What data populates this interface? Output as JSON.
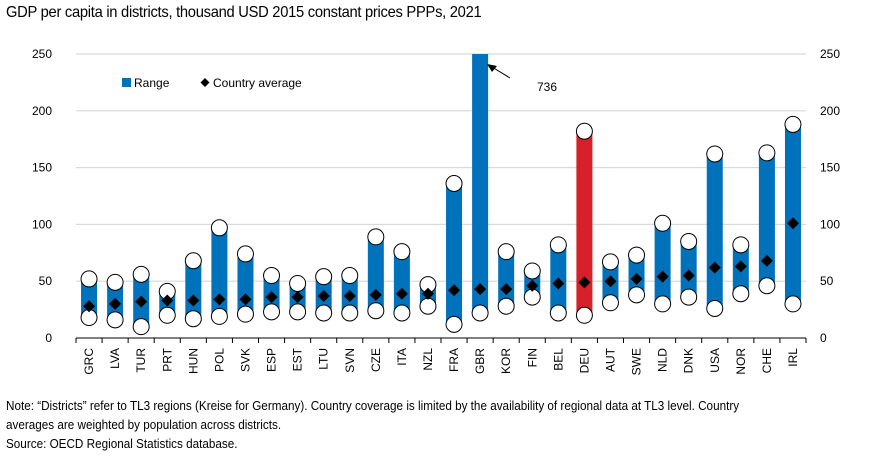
{
  "title": "GDP per capita in districts, thousand USD 2015 constant prices PPPs, 2021",
  "note_lines": [
    "Note: “Districts” refer to TL3 regions (Kreise for Germany). Country coverage is limited by the availability of regional data at TL3 level. Country",
    "averages are weighted by population across districts.",
    "Source: OECD Regional Statistics database."
  ],
  "colors": {
    "range": "#0072BC",
    "highlight": "#D7202A",
    "average": "#000000",
    "grid": "#D9D9D9"
  },
  "chart_data": {
    "type": "range-bar",
    "title": "GDP per capita in districts, thousand USD 2015 constant prices PPPs, 2021",
    "xlabel": "",
    "ylabel": "",
    "ylim": [
      0,
      250
    ],
    "yticks": [
      0,
      50,
      100,
      150,
      200,
      250
    ],
    "grid": true,
    "secondary_axis": true,
    "legend": {
      "placement": "top-left",
      "entries": [
        "Range",
        "Country average"
      ]
    },
    "categories": [
      "GRC",
      "LVA",
      "TUR",
      "PRT",
      "HUN",
      "POL",
      "SVK",
      "ESP",
      "EST",
      "LTU",
      "SVN",
      "CZE",
      "ITA",
      "NZL",
      "FRA",
      "GBR",
      "KOR",
      "FIN",
      "BEL",
      "DEU",
      "AUT",
      "SWE",
      "NLD",
      "DNK",
      "USA",
      "NOR",
      "CHE",
      "IRL"
    ],
    "series": [
      {
        "name": "Range min",
        "values": [
          18,
          16,
          10,
          20,
          17,
          19,
          21,
          23,
          23,
          22,
          22,
          24,
          22,
          28,
          12,
          22,
          28,
          36,
          22,
          20,
          31,
          38,
          30,
          36,
          26,
          39,
          46,
          30
        ]
      },
      {
        "name": "Range max",
        "values": [
          52,
          49,
          56,
          41,
          68,
          97,
          74,
          55,
          48,
          54,
          55,
          89,
          76,
          47,
          136,
          736,
          76,
          59,
          82,
          182,
          67,
          73,
          101,
          85,
          162,
          82,
          163,
          188
        ]
      },
      {
        "name": "Country average",
        "values": [
          28,
          30,
          32,
          33,
          33,
          34,
          34,
          36,
          36,
          37,
          37,
          38,
          39,
          39,
          42,
          43,
          43,
          46,
          48,
          49,
          50,
          52,
          54,
          55,
          62,
          63,
          68,
          101
        ]
      }
    ],
    "highlight": "DEU",
    "annotations": [
      {
        "category": "GBR",
        "text": "736",
        "type": "arrow"
      }
    ]
  }
}
